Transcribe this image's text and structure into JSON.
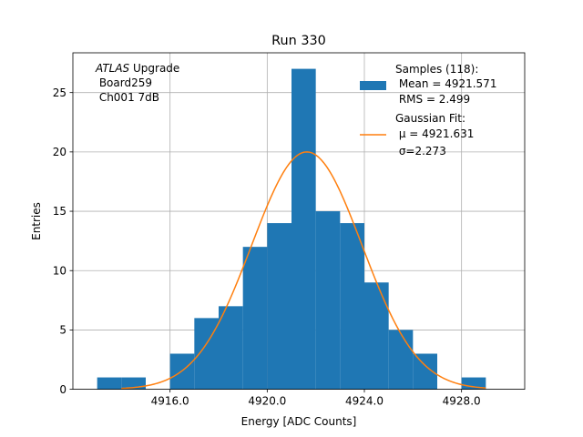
{
  "chart_data": {
    "type": "bar",
    "title": "Run 330",
    "xlabel": "Energy [ADC Counts]",
    "ylabel": "Entries",
    "xlim": [
      4912.0,
      4930.6
    ],
    "ylim": [
      0,
      28.35
    ],
    "xticks": [
      4916,
      4920,
      4924,
      4928
    ],
    "xtick_labels": [
      "4916.0",
      "4920.0",
      "4924.0",
      "4928.0"
    ],
    "yticks": [
      0,
      5,
      10,
      15,
      20,
      25
    ],
    "ytick_labels": [
      "0",
      "5",
      "10",
      "15",
      "20",
      "25"
    ],
    "grid": true,
    "histogram": {
      "bin_edges": [
        4913.0,
        4914.0,
        4915.0,
        4916.0,
        4917.0,
        4918.0,
        4919.0,
        4920.0,
        4921.0,
        4922.0,
        4923.0,
        4924.0,
        4925.0,
        4926.0,
        4927.0,
        4928.0,
        4929.0
      ],
      "counts": [
        1,
        1,
        0,
        3,
        6,
        7,
        12,
        14,
        27,
        15,
        14,
        9,
        5,
        3,
        0,
        1
      ],
      "color": "#1f77b4"
    },
    "fit": {
      "name": "Gaussian Fit",
      "mu": 4921.631,
      "sigma": 2.273,
      "amplitude": 20.0,
      "x_range": [
        4914.0,
        4929.0
      ],
      "color": "#ff7f0e"
    },
    "legend_position": "top-right",
    "legend": {
      "samples": [
        "Samples (118):",
        " Mean = 4921.571",
        " RMS = 2.499"
      ],
      "fit": [
        "Gaussian Fit:",
        " μ = 4921.631",
        " σ=2.273"
      ]
    },
    "annotation": {
      "line1_italic": "ATLAS",
      "line1_rest": " Upgrade",
      "line2": " Board259",
      "line3": " Ch001 7dB"
    }
  }
}
